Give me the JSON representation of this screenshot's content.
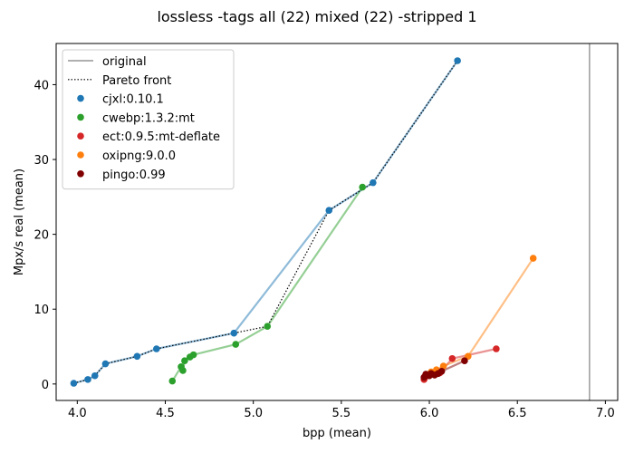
{
  "chart_data": {
    "type": "scatter",
    "title": "lossless -tags all (22) mixed (22) -stripped 1",
    "xlabel": "bpp (mean)",
    "ylabel": "Mpx/s real (mean)",
    "xlim": [
      3.88,
      7.07
    ],
    "ylim": [
      -2.2,
      45.5
    ],
    "xticks": [
      4.0,
      4.5,
      5.0,
      5.5,
      6.0,
      6.5,
      7.0
    ],
    "xtick_labels": [
      "4.0",
      "4.5",
      "5.0",
      "5.5",
      "6.0",
      "6.5",
      "7.0"
    ],
    "yticks": [
      0,
      10,
      20,
      30,
      40
    ],
    "ytick_labels": [
      "0",
      "10",
      "20",
      "30",
      "40"
    ],
    "grid": false,
    "legend_position": "top-left",
    "reference_line": {
      "name": "original",
      "x": 6.91,
      "color": "#808080"
    },
    "pareto_front": {
      "name": "Pareto front",
      "color": "#000000",
      "points": [
        [
          3.98,
          0.1
        ],
        [
          4.06,
          0.6
        ],
        [
          4.1,
          1.1
        ],
        [
          4.16,
          2.7
        ],
        [
          4.34,
          3.7
        ],
        [
          4.45,
          4.7
        ],
        [
          4.89,
          6.8
        ],
        [
          5.08,
          7.7
        ],
        [
          5.43,
          23.2
        ],
        [
          5.68,
          26.9
        ],
        [
          6.16,
          43.2
        ]
      ]
    },
    "series": [
      {
        "name": "cjxl:0.10.1",
        "color": "#1f77b4",
        "points": [
          [
            3.98,
            0.1
          ],
          [
            4.06,
            0.6
          ],
          [
            4.1,
            1.1
          ],
          [
            4.16,
            2.7
          ],
          [
            4.34,
            3.7
          ],
          [
            4.45,
            4.7
          ],
          [
            4.89,
            6.8
          ],
          [
            5.43,
            23.2
          ],
          [
            5.68,
            26.9
          ],
          [
            6.16,
            43.2
          ]
        ]
      },
      {
        "name": "cwebp:1.3.2:mt",
        "color": "#2ca02c",
        "points": [
          [
            4.54,
            0.4
          ],
          [
            4.59,
            2.3
          ],
          [
            4.6,
            1.8
          ],
          [
            4.61,
            3.1
          ],
          [
            4.64,
            3.6
          ],
          [
            4.66,
            3.9
          ],
          [
            4.9,
            5.3
          ],
          [
            5.08,
            7.7
          ],
          [
            5.62,
            26.3
          ]
        ]
      },
      {
        "name": "ect:0.9.5:mt-deflate",
        "color": "#d62728",
        "points": [
          [
            5.97,
            0.6
          ],
          [
            5.98,
            1.0
          ],
          [
            6.02,
            1.3
          ],
          [
            6.06,
            1.5
          ],
          [
            6.13,
            3.4
          ],
          [
            6.38,
            4.7
          ]
        ]
      },
      {
        "name": "oxipng:9.0.0",
        "color": "#ff7f0e",
        "points": [
          [
            5.98,
            1.2
          ],
          [
            6.01,
            1.6
          ],
          [
            6.04,
            1.9
          ],
          [
            6.08,
            2.4
          ],
          [
            6.22,
            3.7
          ],
          [
            6.59,
            16.8
          ]
        ]
      },
      {
        "name": "pingo:0.99",
        "color": "#800000",
        "points": [
          [
            5.97,
            0.9
          ],
          [
            5.98,
            1.3
          ],
          [
            6.0,
            1.1
          ],
          [
            6.01,
            1.4
          ],
          [
            6.03,
            1.2
          ],
          [
            6.05,
            1.4
          ],
          [
            6.07,
            1.7
          ],
          [
            6.2,
            3.1
          ]
        ]
      }
    ]
  }
}
